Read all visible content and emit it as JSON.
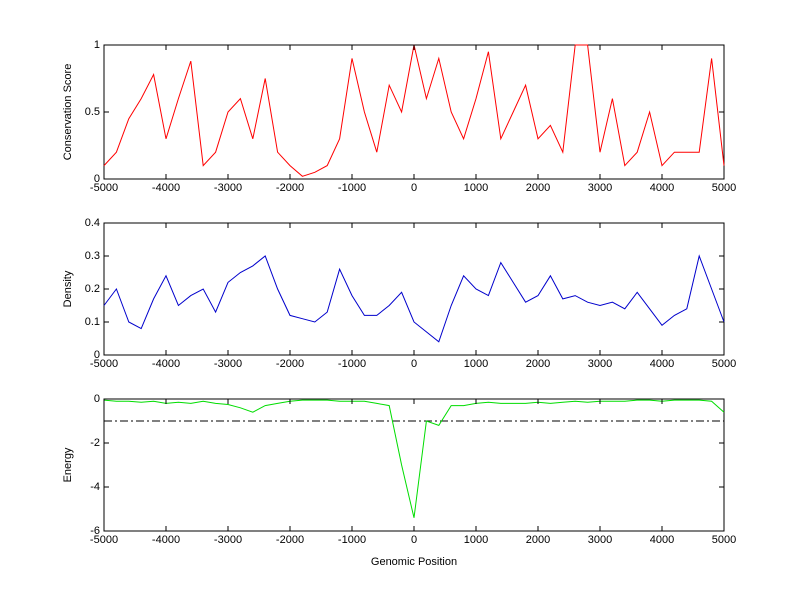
{
  "chart_data": [
    {
      "type": "line",
      "ylabel": "Conservation Score",
      "x": [
        -5000,
        -4800,
        -4600,
        -4400,
        -4200,
        -4000,
        -3800,
        -3600,
        -3400,
        -3200,
        -3000,
        -2800,
        -2600,
        -2400,
        -2200,
        -2000,
        -1800,
        -1600,
        -1400,
        -1200,
        -1000,
        -800,
        -600,
        -400,
        -200,
        0,
        200,
        400,
        600,
        800,
        1000,
        1200,
        1400,
        1600,
        1800,
        2000,
        2200,
        2400,
        2600,
        2800,
        3000,
        3200,
        3400,
        3600,
        3800,
        4000,
        4200,
        4400,
        4600,
        4800,
        5000
      ],
      "series": [
        {
          "color": "#ff0000",
          "values": [
            0.1,
            0.2,
            0.45,
            0.6,
            0.78,
            0.3,
            0.6,
            0.88,
            0.1,
            0.2,
            0.5,
            0.6,
            0.3,
            0.75,
            0.2,
            0.1,
            0.02,
            0.05,
            0.1,
            0.3,
            0.9,
            0.5,
            0.2,
            0.7,
            0.5,
            1,
            0.6,
            0.9,
            0.5,
            0.3,
            0.6,
            0.95,
            0.3,
            0.5,
            0.7,
            0.3,
            0.4,
            0.2,
            1,
            1,
            0.2,
            0.6,
            0.1,
            0.2,
            0.5,
            0.1,
            0.2,
            0.2,
            0.2,
            0.9,
            0.1
          ]
        }
      ],
      "xlim": [
        -5000,
        5000
      ],
      "xticks": [
        -5000,
        -4000,
        -3000,
        -2000,
        -1000,
        0,
        1000,
        2000,
        3000,
        4000,
        5000
      ],
      "ylim": [
        0,
        1
      ],
      "yticks": [
        0,
        0.5,
        1
      ]
    },
    {
      "type": "line",
      "ylabel": "Density",
      "x": [
        -5000,
        -4800,
        -4600,
        -4400,
        -4200,
        -4000,
        -3800,
        -3600,
        -3400,
        -3200,
        -3000,
        -2800,
        -2600,
        -2400,
        -2200,
        -2000,
        -1800,
        -1600,
        -1400,
        -1200,
        -1000,
        -800,
        -600,
        -400,
        -200,
        0,
        200,
        400,
        600,
        800,
        1000,
        1200,
        1400,
        1600,
        1800,
        2000,
        2200,
        2400,
        2600,
        2800,
        3000,
        3200,
        3400,
        3600,
        3800,
        4000,
        4200,
        4400,
        4600,
        4800,
        5000
      ],
      "series": [
        {
          "color": "#0000cc",
          "values": [
            0.15,
            0.2,
            0.1,
            0.08,
            0.17,
            0.24,
            0.15,
            0.18,
            0.2,
            0.13,
            0.22,
            0.25,
            0.27,
            0.3,
            0.2,
            0.12,
            0.11,
            0.1,
            0.13,
            0.26,
            0.18,
            0.12,
            0.12,
            0.15,
            0.19,
            0.1,
            0.07,
            0.04,
            0.15,
            0.24,
            0.2,
            0.18,
            0.28,
            0.22,
            0.16,
            0.18,
            0.24,
            0.17,
            0.18,
            0.16,
            0.15,
            0.16,
            0.14,
            0.19,
            0.14,
            0.09,
            0.12,
            0.14,
            0.3,
            0.2,
            0.1
          ]
        }
      ],
      "xlim": [
        -5000,
        5000
      ],
      "xticks": [
        -5000,
        -4000,
        -3000,
        -2000,
        -1000,
        0,
        1000,
        2000,
        3000,
        4000,
        5000
      ],
      "ylim": [
        0,
        0.4
      ],
      "yticks": [
        0,
        0.1,
        0.2,
        0.3,
        0.4
      ]
    },
    {
      "type": "line",
      "ylabel": "Energy",
      "xlabel": "Genomic Position",
      "x": [
        -5000,
        -4800,
        -4600,
        -4400,
        -4200,
        -4000,
        -3800,
        -3600,
        -3400,
        -3200,
        -3000,
        -2800,
        -2600,
        -2400,
        -2200,
        -2000,
        -1800,
        -1600,
        -1400,
        -1200,
        -1000,
        -800,
        -600,
        -400,
        -200,
        0,
        200,
        400,
        600,
        800,
        1000,
        1200,
        1400,
        1600,
        1800,
        2000,
        2200,
        2400,
        2600,
        2800,
        3000,
        3200,
        3400,
        3600,
        3800,
        4000,
        4200,
        4400,
        4600,
        4800,
        5000
      ],
      "series": [
        {
          "color": "#00dd00",
          "values": [
            -0.05,
            -0.1,
            -0.1,
            -0.15,
            -0.1,
            -0.2,
            -0.15,
            -0.2,
            -0.1,
            -0.2,
            -0.25,
            -0.4,
            -0.6,
            -0.3,
            -0.2,
            -0.1,
            -0.05,
            -0.05,
            -0.05,
            -0.1,
            -0.1,
            -0.1,
            -0.2,
            -0.3,
            -3,
            -5.4,
            -1,
            -1.2,
            -0.3,
            -0.3,
            -0.2,
            -0.15,
            -0.2,
            -0.2,
            -0.2,
            -0.15,
            -0.2,
            -0.15,
            -0.1,
            -0.15,
            -0.1,
            -0.1,
            -0.1,
            -0.05,
            -0.05,
            -0.1,
            -0.05,
            -0.05,
            -0.05,
            -0.1,
            -0.6
          ]
        }
      ],
      "hline": -1,
      "xlim": [
        -5000,
        5000
      ],
      "xticks": [
        -5000,
        -4000,
        -3000,
        -2000,
        -1000,
        0,
        1000,
        2000,
        3000,
        4000,
        5000
      ],
      "ylim": [
        -6,
        0
      ],
      "yticks": [
        -6,
        -4,
        -2,
        0
      ]
    }
  ]
}
